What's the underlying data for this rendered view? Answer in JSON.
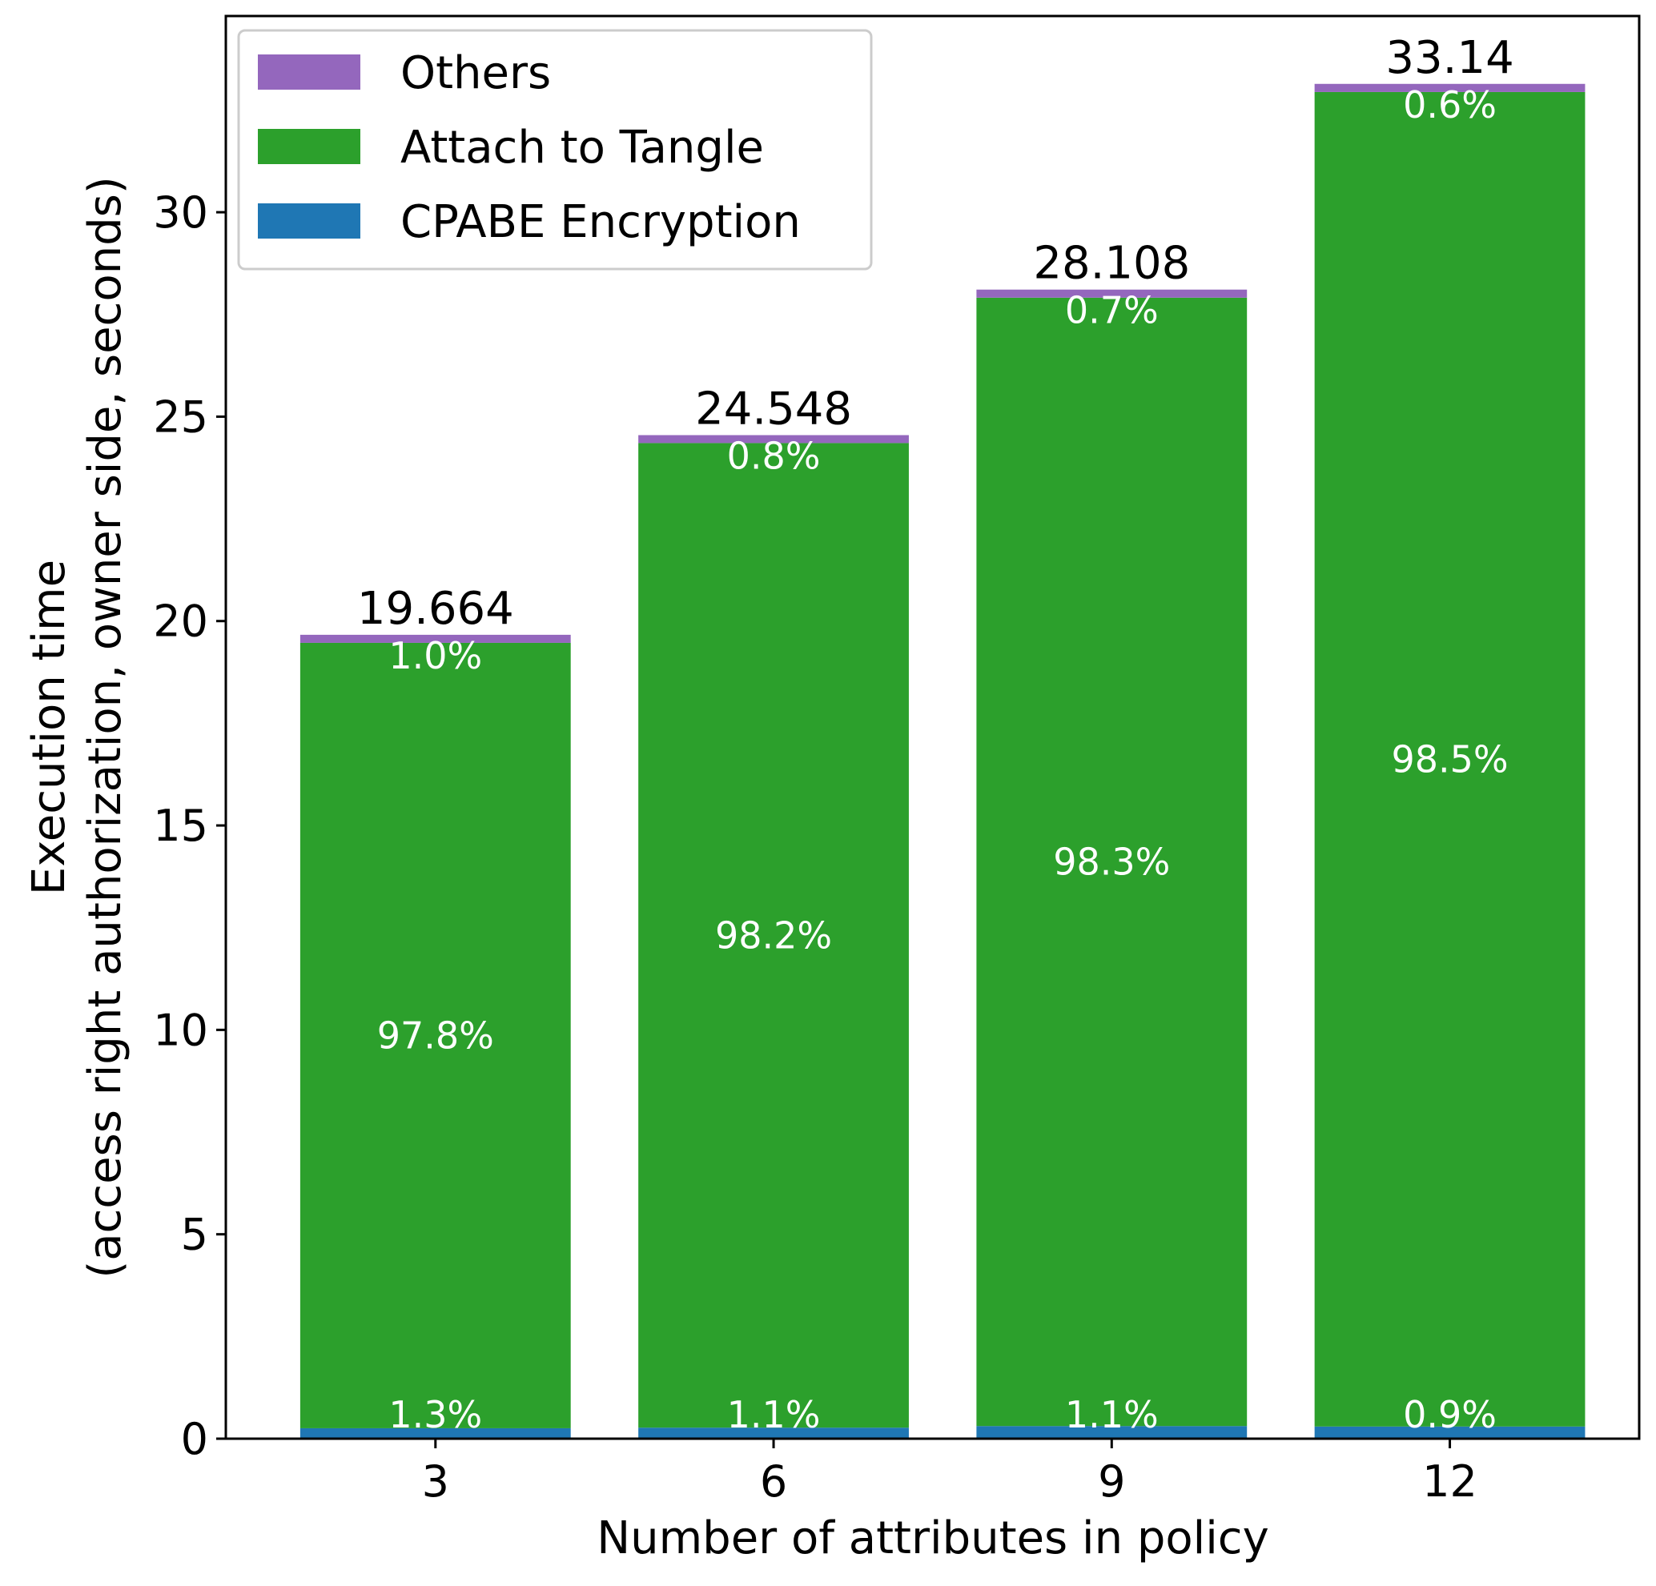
{
  "chart_data": {
    "type": "bar",
    "stacked": true,
    "title": "",
    "xlabel": "Number of attributes in policy",
    "ylabel_lines": [
      "Execution time",
      "(access right authorization, owner side, seconds)"
    ],
    "categories": [
      "3",
      "6",
      "9",
      "12"
    ],
    "ylim": [
      0,
      34.8
    ],
    "yticks": [
      0,
      5,
      10,
      15,
      20,
      25,
      30
    ],
    "ytick_labels": [
      "0",
      "5",
      "10",
      "15",
      "20",
      "25",
      "30"
    ],
    "series": [
      {
        "name": "CPABE Encryption",
        "color": "#1f77b4",
        "values": [
          0.256,
          0.27,
          0.309,
          0.298
        ],
        "labels": [
          "1.3%",
          "1.1%",
          "1.1%",
          "0.9%"
        ]
      },
      {
        "name": "Attach to Tangle",
        "color": "#2ca02c",
        "values": [
          19.211,
          24.084,
          27.601,
          32.643
        ],
        "labels": [
          "97.8%",
          "98.2%",
          "98.3%",
          "98.5%"
        ]
      },
      {
        "name": "Others",
        "color": "#9467bd",
        "values": [
          0.197,
          0.194,
          0.198,
          0.199
        ],
        "labels": [
          "1.0%",
          "0.8%",
          "0.7%",
          "0.6%"
        ]
      }
    ],
    "totals": [
      "19.664",
      "24.548",
      "28.108",
      "33.14"
    ],
    "legend": {
      "position": "top-left",
      "order": [
        "Others",
        "Attach to Tangle",
        "CPABE Encryption"
      ]
    },
    "grid": false
  }
}
